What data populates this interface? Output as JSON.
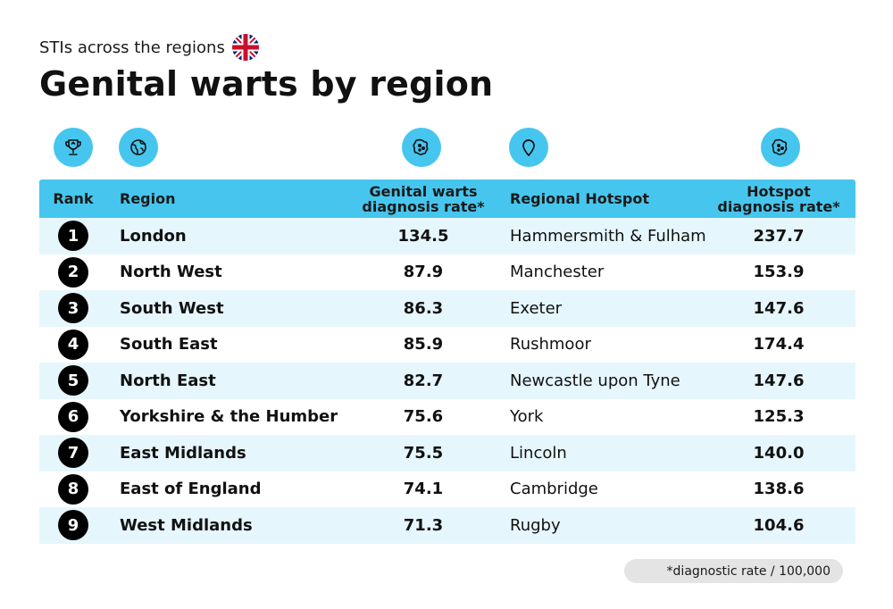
{
  "header": {
    "kicker": "STIs across the regions",
    "title": "Genital warts by region"
  },
  "icons": {
    "rank": "trophy-icon",
    "region": "globe-icon",
    "rate": "virus-icon",
    "hotspot": "location-pin-icon",
    "hotspot_rate": "virus-icon",
    "flag": "uk-flag-icon"
  },
  "colors": {
    "accent": "#46c6ee",
    "row_alt": "#e6f6fd",
    "badge": "#000000"
  },
  "table": {
    "headers": {
      "rank": "Rank",
      "region": "Region",
      "rate_line1": "Genital warts",
      "rate_line2": "diagnosis rate*",
      "hotspot": "Regional Hotspot",
      "hotspot_rate_line1": "Hotspot",
      "hotspot_rate_line2": "diagnosis rate*"
    },
    "rows": [
      {
        "rank": "1",
        "region": "London",
        "rate": "134.5",
        "hotspot": "Hammersmith & Fulham",
        "hotspot_rate": "237.7"
      },
      {
        "rank": "2",
        "region": "North West",
        "rate": "87.9",
        "hotspot": "Manchester",
        "hotspot_rate": "153.9"
      },
      {
        "rank": "3",
        "region": "South West",
        "rate": "86.3",
        "hotspot": "Exeter",
        "hotspot_rate": "147.6"
      },
      {
        "rank": "4",
        "region": "South East",
        "rate": "85.9",
        "hotspot": "Rushmoor",
        "hotspot_rate": "174.4"
      },
      {
        "rank": "5",
        "region": "North East",
        "rate": "82.7",
        "hotspot": "Newcastle upon Tyne",
        "hotspot_rate": "147.6"
      },
      {
        "rank": "6",
        "region": "Yorkshire & the Humber",
        "rate": "75.6",
        "hotspot": "York",
        "hotspot_rate": "125.3"
      },
      {
        "rank": "7",
        "region": "East Midlands",
        "rate": "75.5",
        "hotspot": "Lincoln",
        "hotspot_rate": "140.0"
      },
      {
        "rank": "8",
        "region": "East of England",
        "rate": "74.1",
        "hotspot": "Cambridge",
        "hotspot_rate": "138.6"
      },
      {
        "rank": "9",
        "region": "West Midlands",
        "rate": "71.3",
        "hotspot": "Rugby",
        "hotspot_rate": "104.6"
      }
    ]
  },
  "footnote": "*diagnostic rate / 100,000"
}
